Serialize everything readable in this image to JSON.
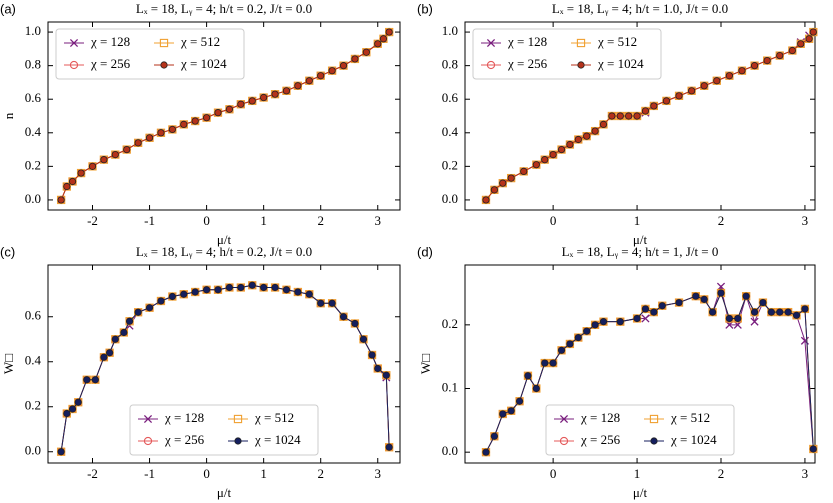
{
  "chart_data": [
    {
      "type": "line",
      "label": "(a)",
      "title": "Lₓ = 18, Lᵧ = 4;  h/t = 0.2, J/t = 0.0",
      "xlabel": "μ/t",
      "ylabel": "n",
      "legend": "upper left",
      "xlim": [
        -2.78,
        3.39
      ],
      "ylim": [
        -0.06,
        1.06
      ],
      "xticks": [
        -2,
        -1,
        0,
        1,
        2,
        3
      ],
      "yticks": [
        {
          "value": 0,
          "label": "0.0"
        },
        0.2,
        0.4,
        0.6,
        0.8,
        {
          "value": 1,
          "label": "1.0"
        }
      ],
      "x": [
        -2.55,
        -2.45,
        -2.35,
        -2.2,
        -2.0,
        -1.8,
        -1.6,
        -1.4,
        -1.2,
        -1.0,
        -0.8,
        -0.6,
        -0.4,
        -0.2,
        0,
        0.2,
        0.4,
        0.6,
        0.8,
        1.0,
        1.2,
        1.4,
        1.6,
        1.8,
        2.0,
        2.2,
        2.4,
        2.6,
        2.8,
        3.0,
        3.1,
        3.2
      ],
      "series": [
        {
          "name": "χ = 128",
          "color": "#7a1f7e",
          "marker": "x",
          "values": [
            0,
            0.08,
            0.11,
            0.16,
            0.2,
            0.24,
            0.27,
            0.3,
            0.34,
            0.37,
            0.4,
            0.42,
            0.45,
            0.47,
            0.49,
            0.52,
            0.54,
            0.57,
            0.59,
            0.61,
            0.63,
            0.65,
            0.68,
            0.71,
            0.74,
            0.77,
            0.8,
            0.84,
            0.88,
            0.93,
            0.96,
            1.0
          ]
        },
        {
          "name": "χ = 256",
          "color": "#e4595a",
          "marker": "o",
          "values": [
            0,
            0.08,
            0.11,
            0.16,
            0.2,
            0.24,
            0.27,
            0.3,
            0.34,
            0.37,
            0.4,
            0.42,
            0.45,
            0.47,
            0.49,
            0.52,
            0.54,
            0.57,
            0.59,
            0.61,
            0.63,
            0.65,
            0.68,
            0.71,
            0.74,
            0.77,
            0.8,
            0.84,
            0.88,
            0.93,
            0.96,
            1.0
          ]
        },
        {
          "name": "χ = 512",
          "color": "#f0a030",
          "marker": "s",
          "values": [
            0,
            0.08,
            0.11,
            0.16,
            0.2,
            0.24,
            0.27,
            0.3,
            0.34,
            0.37,
            0.4,
            0.42,
            0.45,
            0.47,
            0.49,
            0.52,
            0.54,
            0.57,
            0.59,
            0.61,
            0.63,
            0.65,
            0.68,
            0.71,
            0.74,
            0.77,
            0.8,
            0.84,
            0.88,
            0.93,
            0.96,
            1.0
          ]
        },
        {
          "name": "χ = 1024",
          "color": "#b5321a",
          "marker": "filled-o",
          "values": [
            0,
            0.08,
            0.11,
            0.16,
            0.2,
            0.24,
            0.27,
            0.3,
            0.34,
            0.37,
            0.4,
            0.42,
            0.45,
            0.47,
            0.49,
            0.52,
            0.54,
            0.57,
            0.59,
            0.61,
            0.63,
            0.65,
            0.68,
            0.71,
            0.74,
            0.77,
            0.8,
            0.84,
            0.88,
            0.93,
            0.96,
            1.0
          ]
        }
      ]
    },
    {
      "type": "line",
      "label": "(b)",
      "title": "Lₓ = 18, Lᵧ = 4;  h/t = 1.0, J/t = 0.0",
      "xlabel": "μ/t",
      "legend": "upper left",
      "xlim": [
        -1.05,
        3.12
      ],
      "ylim": [
        -0.06,
        1.06
      ],
      "xticks": [
        0,
        1,
        2,
        3
      ],
      "yticks": [
        {
          "value": 0,
          "label": "0.0"
        },
        0.2,
        0.4,
        0.6,
        0.8,
        {
          "value": 1,
          "label": "1.0"
        }
      ],
      "x": [
        -0.8,
        -0.7,
        -0.6,
        -0.5,
        -0.35,
        -0.2,
        -0.1,
        0,
        0.1,
        0.2,
        0.3,
        0.4,
        0.5,
        0.6,
        0.7,
        0.8,
        0.9,
        1.0,
        1.1,
        1.2,
        1.35,
        1.5,
        1.65,
        1.8,
        1.95,
        2.1,
        2.25,
        2.4,
        2.55,
        2.7,
        2.85,
        2.95,
        3.05,
        3.1
      ],
      "series": [
        {
          "name": "χ = 128",
          "color": "#7a1f7e",
          "marker": "x",
          "values": [
            0,
            0.06,
            0.1,
            0.13,
            0.17,
            0.21,
            0.24,
            0.27,
            0.3,
            0.33,
            0.36,
            0.38,
            0.41,
            0.45,
            0.5,
            0.5,
            0.5,
            0.5,
            0.52,
            0.56,
            0.59,
            0.62,
            0.65,
            0.68,
            0.71,
            0.74,
            0.77,
            0.8,
            0.83,
            0.86,
            0.89,
            0.94,
            0.98,
            1.0
          ]
        },
        {
          "name": "χ = 256",
          "color": "#e4595a",
          "marker": "o",
          "values": [
            0,
            0.06,
            0.1,
            0.13,
            0.17,
            0.21,
            0.24,
            0.27,
            0.3,
            0.33,
            0.36,
            0.38,
            0.41,
            0.45,
            0.5,
            0.5,
            0.5,
            0.5,
            0.53,
            0.56,
            0.59,
            0.62,
            0.65,
            0.68,
            0.71,
            0.74,
            0.77,
            0.8,
            0.83,
            0.86,
            0.89,
            0.93,
            0.96,
            1.0
          ]
        },
        {
          "name": "χ = 512",
          "color": "#f0a030",
          "marker": "s",
          "values": [
            0,
            0.06,
            0.1,
            0.13,
            0.17,
            0.21,
            0.24,
            0.27,
            0.3,
            0.33,
            0.36,
            0.38,
            0.41,
            0.45,
            0.5,
            0.5,
            0.5,
            0.5,
            0.53,
            0.56,
            0.59,
            0.62,
            0.65,
            0.68,
            0.71,
            0.74,
            0.77,
            0.8,
            0.83,
            0.86,
            0.89,
            0.93,
            0.96,
            1.0
          ]
        },
        {
          "name": "χ = 1024",
          "color": "#b5321a",
          "marker": "filled-o",
          "values": [
            0,
            0.06,
            0.1,
            0.13,
            0.17,
            0.21,
            0.24,
            0.27,
            0.3,
            0.33,
            0.36,
            0.38,
            0.41,
            0.45,
            0.5,
            0.5,
            0.5,
            0.5,
            0.53,
            0.56,
            0.59,
            0.62,
            0.65,
            0.68,
            0.71,
            0.74,
            0.77,
            0.8,
            0.83,
            0.86,
            0.89,
            0.93,
            0.96,
            1.0
          ]
        }
      ]
    },
    {
      "type": "line",
      "label": "(c)",
      "title": "Lₓ = 18, Lᵧ = 4;  h/t = 0.2, J/t = 0.0",
      "xlabel": "μ/t",
      "ylabel": "W□",
      "legend": "lower center",
      "xlim": [
        -2.78,
        3.39
      ],
      "ylim": [
        -0.05,
        0.83
      ],
      "xticks": [
        -2,
        -1,
        0,
        1,
        2,
        3
      ],
      "yticks": [
        {
          "value": 0,
          "label": "0.0"
        },
        0.2,
        0.4,
        0.6
      ],
      "x": [
        -2.55,
        -2.45,
        -2.35,
        -2.25,
        -2.1,
        -1.95,
        -1.8,
        -1.7,
        -1.6,
        -1.45,
        -1.35,
        -1.2,
        -1.0,
        -0.8,
        -0.6,
        -0.4,
        -0.2,
        0,
        0.2,
        0.4,
        0.6,
        0.8,
        1.0,
        1.2,
        1.4,
        1.6,
        1.8,
        2.0,
        2.2,
        2.4,
        2.6,
        2.75,
        2.9,
        3.0,
        3.15,
        3.2
      ],
      "series": [
        {
          "name": "χ = 128",
          "color": "#7a1f7e",
          "marker": "x",
          "values": [
            0,
            0.17,
            0.19,
            0.22,
            0.32,
            0.32,
            0.42,
            0.44,
            0.5,
            0.53,
            0.56,
            0.62,
            0.64,
            0.67,
            0.69,
            0.7,
            0.71,
            0.72,
            0.72,
            0.73,
            0.73,
            0.74,
            0.73,
            0.73,
            0.72,
            0.71,
            0.7,
            0.66,
            0.66,
            0.6,
            0.57,
            0.5,
            0.43,
            0.37,
            0.33,
            0.02
          ]
        },
        {
          "name": "χ = 256",
          "color": "#e4595a",
          "marker": "o",
          "values": [
            0,
            0.17,
            0.19,
            0.22,
            0.32,
            0.32,
            0.42,
            0.44,
            0.5,
            0.53,
            0.58,
            0.62,
            0.64,
            0.67,
            0.69,
            0.7,
            0.71,
            0.72,
            0.72,
            0.73,
            0.73,
            0.74,
            0.73,
            0.73,
            0.72,
            0.71,
            0.7,
            0.66,
            0.66,
            0.6,
            0.57,
            0.5,
            0.43,
            0.37,
            0.34,
            0.02
          ]
        },
        {
          "name": "χ = 512",
          "color": "#f0a030",
          "marker": "s",
          "values": [
            0,
            0.17,
            0.19,
            0.22,
            0.32,
            0.32,
            0.42,
            0.44,
            0.5,
            0.53,
            0.58,
            0.62,
            0.64,
            0.67,
            0.69,
            0.7,
            0.71,
            0.72,
            0.72,
            0.73,
            0.73,
            0.74,
            0.73,
            0.73,
            0.72,
            0.71,
            0.7,
            0.66,
            0.66,
            0.6,
            0.57,
            0.5,
            0.43,
            0.37,
            0.34,
            0.02
          ]
        },
        {
          "name": "χ = 1024",
          "color": "#141e5e",
          "marker": "filled-o",
          "values": [
            0,
            0.17,
            0.19,
            0.22,
            0.32,
            0.32,
            0.42,
            0.44,
            0.5,
            0.53,
            0.58,
            0.62,
            0.64,
            0.67,
            0.69,
            0.7,
            0.71,
            0.72,
            0.72,
            0.73,
            0.73,
            0.74,
            0.73,
            0.73,
            0.72,
            0.71,
            0.7,
            0.66,
            0.66,
            0.6,
            0.57,
            0.5,
            0.43,
            0.37,
            0.34,
            0.02
          ]
        }
      ]
    },
    {
      "type": "line",
      "label": "(d)",
      "title": "Lₓ = 18, Lᵧ = 4;  h/t = 1, J/t = 0",
      "xlabel": "μ/t",
      "ylabel": "W□",
      "legend": "lower center",
      "xlim": [
        -1.05,
        3.12
      ],
      "ylim": [
        -0.017,
        0.294
      ],
      "xticks": [
        0,
        1,
        2,
        3
      ],
      "yticks": [
        {
          "value": 0,
          "label": "0.0"
        },
        0.1,
        0.2
      ],
      "x": [
        -0.8,
        -0.7,
        -0.6,
        -0.5,
        -0.4,
        -0.3,
        -0.2,
        -0.1,
        0,
        0.1,
        0.2,
        0.3,
        0.4,
        0.5,
        0.6,
        0.8,
        1.0,
        1.1,
        1.2,
        1.3,
        1.5,
        1.7,
        1.8,
        1.9,
        2.0,
        2.1,
        2.2,
        2.3,
        2.4,
        2.5,
        2.6,
        2.7,
        2.8,
        2.9,
        3.0,
        3.1
      ],
      "series": [
        {
          "name": "χ = 128",
          "color": "#7a1f7e",
          "marker": "x",
          "values": [
            0,
            0.025,
            0.06,
            0.065,
            0.08,
            0.12,
            0.1,
            0.14,
            0.14,
            0.16,
            0.17,
            0.18,
            0.19,
            0.2,
            0.205,
            0.205,
            0.21,
            0.21,
            0.22,
            0.23,
            0.235,
            0.245,
            0.24,
            0.22,
            0.26,
            0.2,
            0.2,
            0.245,
            0.205,
            0.235,
            0.22,
            0.22,
            0.22,
            0.215,
            0.175,
            0.005
          ]
        },
        {
          "name": "χ = 256",
          "color": "#e4595a",
          "marker": "o",
          "values": [
            0,
            0.025,
            0.06,
            0.065,
            0.08,
            0.12,
            0.1,
            0.14,
            0.14,
            0.16,
            0.17,
            0.18,
            0.19,
            0.2,
            0.205,
            0.205,
            0.21,
            0.225,
            0.22,
            0.23,
            0.235,
            0.245,
            0.24,
            0.22,
            0.25,
            0.21,
            0.21,
            0.245,
            0.22,
            0.235,
            0.22,
            0.22,
            0.22,
            0.215,
            0.225,
            0.005
          ]
        },
        {
          "name": "χ = 512",
          "color": "#f0a030",
          "marker": "s",
          "values": [
            0,
            0.025,
            0.06,
            0.065,
            0.08,
            0.12,
            0.1,
            0.14,
            0.14,
            0.16,
            0.17,
            0.18,
            0.19,
            0.2,
            0.205,
            0.205,
            0.21,
            0.225,
            0.22,
            0.23,
            0.235,
            0.245,
            0.24,
            0.22,
            0.25,
            0.21,
            0.21,
            0.245,
            0.22,
            0.235,
            0.22,
            0.22,
            0.22,
            0.215,
            0.225,
            0.005
          ]
        },
        {
          "name": "χ = 1024",
          "color": "#141e5e",
          "marker": "filled-o",
          "values": [
            0,
            0.025,
            0.06,
            0.065,
            0.08,
            0.12,
            0.1,
            0.14,
            0.14,
            0.16,
            0.17,
            0.18,
            0.19,
            0.2,
            0.205,
            0.205,
            0.21,
            0.225,
            0.22,
            0.23,
            0.235,
            0.245,
            0.24,
            0.22,
            0.25,
            0.21,
            0.21,
            0.245,
            0.22,
            0.235,
            0.22,
            0.22,
            0.22,
            0.215,
            0.225,
            0.005
          ]
        }
      ]
    }
  ]
}
